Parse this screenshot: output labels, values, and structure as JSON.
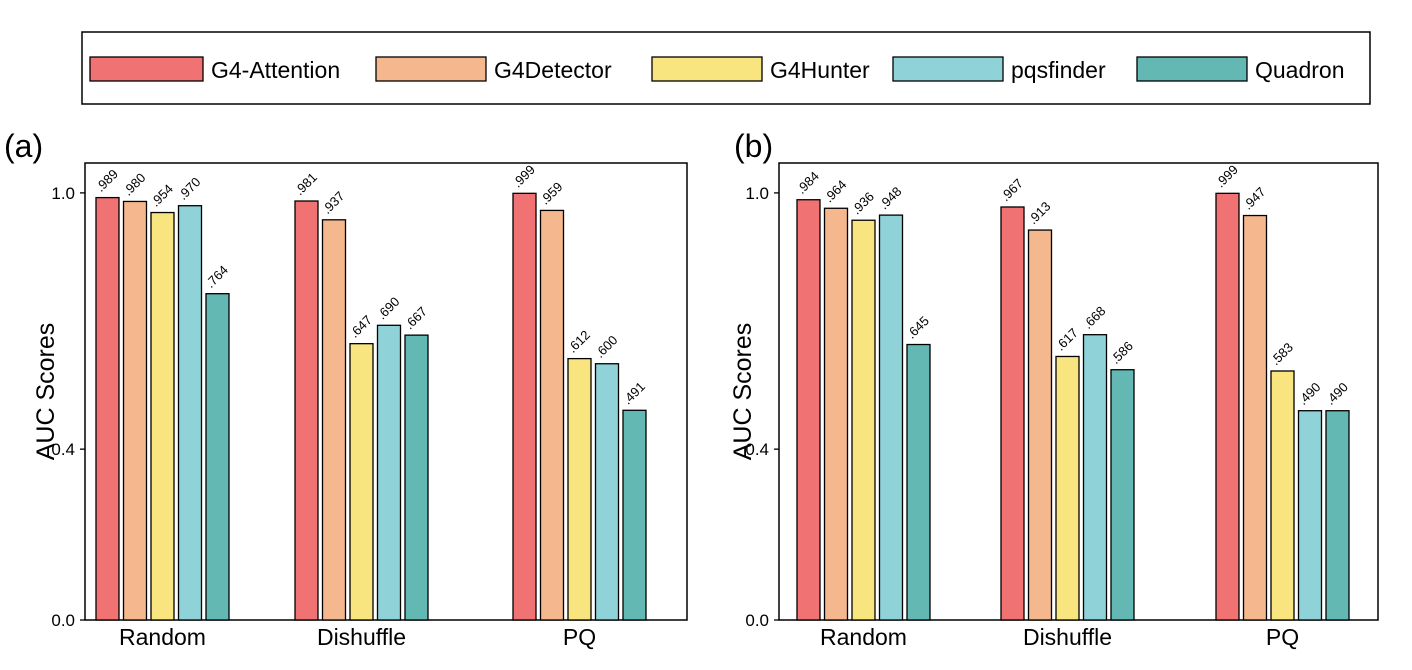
{
  "legend": {
    "entries": [
      {
        "name": "G4-Attention",
        "color": "#f07272"
      },
      {
        "name": "G4Detector",
        "color": "#f5b78e"
      },
      {
        "name": "G4Hunter",
        "color": "#f9e580"
      },
      {
        "name": "pqsfinder",
        "color": "#8fd3d8"
      },
      {
        "name": "Quadron",
        "color": "#63b8b4"
      }
    ]
  },
  "chart_data": [
    {
      "panel_label": "(a)",
      "type": "bar",
      "ylabel": "AUC Scores",
      "ylim": [
        0.0,
        1.07
      ],
      "yticks": [
        "0.0",
        "0.4",
        "1.0"
      ],
      "categories": [
        "Random",
        "Dishuffle",
        "PQ"
      ],
      "series": [
        {
          "name": "G4-Attention",
          "values": [
            0.989,
            0.981,
            0.999
          ],
          "labels": [
            ".989",
            ".981",
            ".999"
          ]
        },
        {
          "name": "G4Detector",
          "values": [
            0.98,
            0.937,
            0.959
          ],
          "labels": [
            ".980",
            ".937",
            ".959"
          ]
        },
        {
          "name": "G4Hunter",
          "values": [
            0.954,
            0.647,
            0.612
          ],
          "labels": [
            ".954",
            ".647",
            ".612"
          ]
        },
        {
          "name": "pqsfinder",
          "values": [
            0.97,
            0.69,
            0.6
          ],
          "labels": [
            ".970",
            ".690",
            ".600"
          ]
        },
        {
          "name": "Quadron",
          "values": [
            0.764,
            0.667,
            0.491
          ],
          "labels": [
            ".764",
            ".667",
            ".491"
          ]
        }
      ]
    },
    {
      "panel_label": "(b)",
      "type": "bar",
      "ylabel": "AUC Scores",
      "ylim": [
        0.0,
        1.07
      ],
      "yticks": [
        "0.0",
        "0.4",
        "1.0"
      ],
      "categories": [
        "Random",
        "Dishuffle",
        "PQ"
      ],
      "series": [
        {
          "name": "G4-Attention",
          "values": [
            0.984,
            0.967,
            0.999
          ],
          "labels": [
            ".984",
            ".967",
            ".999"
          ]
        },
        {
          "name": "G4Detector",
          "values": [
            0.964,
            0.913,
            0.947
          ],
          "labels": [
            ".964",
            ".913",
            ".947"
          ]
        },
        {
          "name": "G4Hunter",
          "values": [
            0.936,
            0.617,
            0.583
          ],
          "labels": [
            ".936",
            ".617",
            ".583"
          ]
        },
        {
          "name": "pqsfinder",
          "values": [
            0.948,
            0.668,
            0.49
          ],
          "labels": [
            ".948",
            ".668",
            ".490"
          ]
        },
        {
          "name": "Quadron",
          "values": [
            0.645,
            0.586,
            0.49
          ],
          "labels": [
            ".645",
            ".586",
            ".490"
          ]
        }
      ]
    }
  ]
}
